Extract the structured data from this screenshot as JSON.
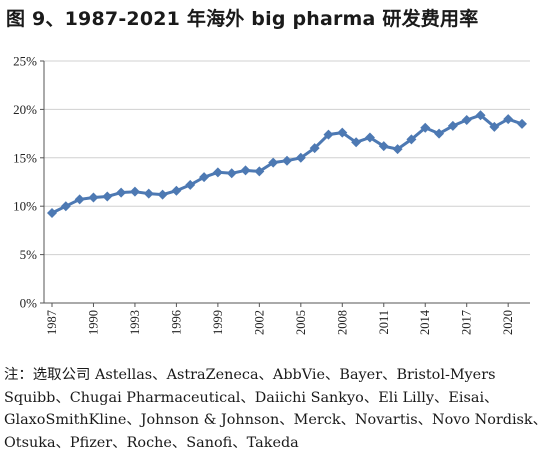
{
  "figure_title": "图 9、1987-2021 年海外 big pharma 研发费用率",
  "chart_data": {
    "type": "line",
    "title": "",
    "xlabel": "",
    "ylabel": "",
    "x": [
      1987,
      1988,
      1989,
      1990,
      1991,
      1992,
      1993,
      1994,
      1995,
      1996,
      1997,
      1998,
      1999,
      2000,
      2001,
      2002,
      2003,
      2004,
      2005,
      2006,
      2007,
      2008,
      2009,
      2010,
      2011,
      2012,
      2013,
      2014,
      2015,
      2016,
      2017,
      2018,
      2019,
      2020,
      2021
    ],
    "x_tick_labels": [
      "1987",
      "1990",
      "1993",
      "1996",
      "1999",
      "2002",
      "2005",
      "2008",
      "2011",
      "2014",
      "2017",
      "2020"
    ],
    "y_tick_labels": [
      "0%",
      "5%",
      "10%",
      "15%",
      "20%",
      "25%"
    ],
    "ylim": [
      0,
      25
    ],
    "series": [
      {
        "values": [
          9.3,
          10.0,
          10.7,
          10.9,
          11.0,
          11.4,
          11.5,
          11.3,
          11.2,
          11.6,
          12.2,
          13.0,
          13.5,
          13.4,
          13.7,
          13.6,
          14.5,
          14.7,
          15.0,
          16.0,
          17.4,
          17.6,
          16.6,
          17.1,
          16.2,
          15.9,
          16.9,
          18.1,
          17.5,
          18.3,
          18.9,
          19.4,
          18.2,
          19.0,
          18.5
        ],
        "color": "#4d79b3"
      }
    ],
    "grid": "horizontal",
    "marker": "diamond"
  },
  "note": {
    "prefix": "注：选取公司",
    "text": "Astellas、AstraZeneca、AbbVie、Bayer、Bristol-Myers Squibb、Chugai Pharmaceutical、Daiichi Sankyo、Eli Lilly、Eisai、GlaxoSmithKline、Johnson & Johnson、Merck、Novartis、Novo Nordisk、Otsuka、Pfizer、Roche、Sanofi、Takeda"
  }
}
